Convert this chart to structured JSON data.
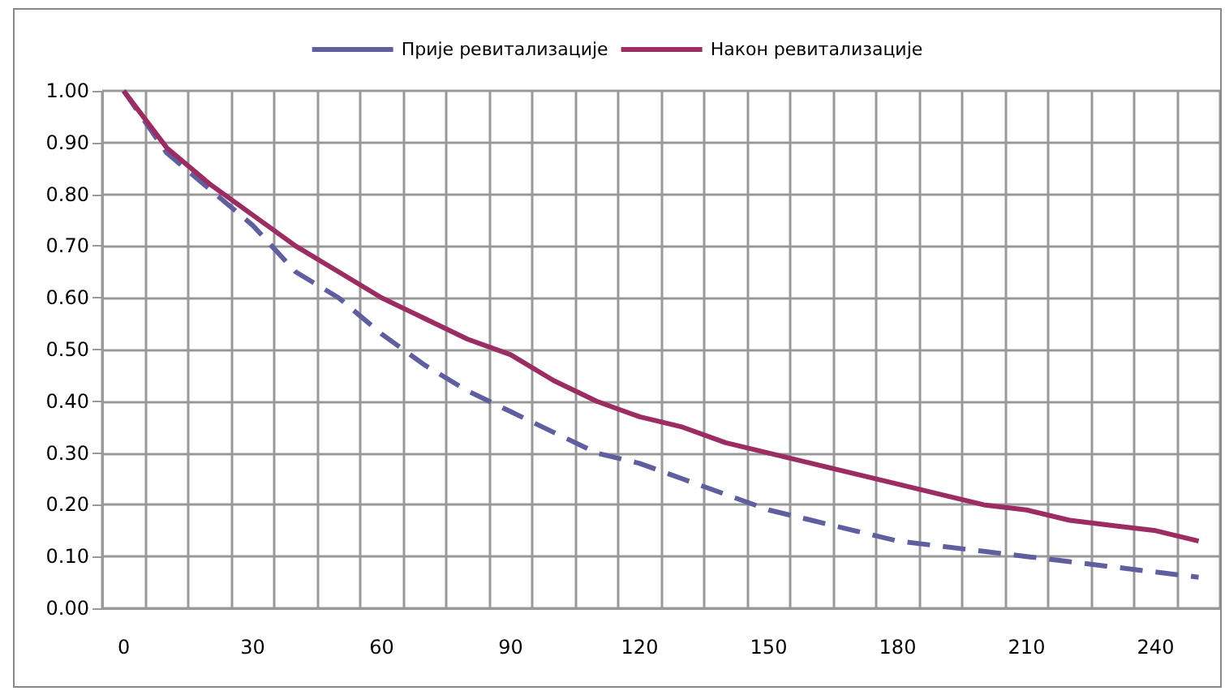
{
  "chart_data": {
    "type": "line",
    "categories": [
      "0",
      null,
      null,
      "30",
      null,
      null,
      "60",
      null,
      null,
      "90",
      null,
      null,
      "120",
      null,
      null,
      "150",
      null,
      null,
      "180",
      null,
      null,
      "210",
      null,
      null,
      "240",
      null
    ],
    "series": [
      {
        "name": "Прије ревитализације",
        "color": "#5f5f9f",
        "line_style": "dashed",
        "values": [
          1.0,
          0.88,
          0.81,
          0.74,
          0.65,
          0.6,
          0.53,
          0.47,
          0.42,
          0.38,
          0.34,
          0.3,
          0.28,
          0.25,
          0.22,
          0.19,
          0.17,
          0.15,
          0.13,
          0.12,
          0.11,
          0.1,
          0.09,
          0.08,
          0.07,
          0.06
        ]
      },
      {
        "name": "Након ревитализације",
        "color": "#9b2d62",
        "line_style": "solid",
        "values": [
          1.0,
          0.89,
          0.82,
          0.76,
          0.7,
          0.65,
          0.6,
          0.56,
          0.52,
          0.49,
          0.44,
          0.4,
          0.37,
          0.35,
          0.32,
          0.3,
          0.28,
          0.26,
          0.24,
          0.22,
          0.2,
          0.19,
          0.17,
          0.16,
          0.15,
          0.13
        ]
      }
    ],
    "ylim": [
      0,
      1
    ],
    "yticks": [
      {
        "value": 0,
        "label": "0.00"
      },
      {
        "value": 0.1,
        "label": "0.10"
      },
      {
        "value": 0.2,
        "label": "0.20"
      },
      {
        "value": 0.3,
        "label": "0.30"
      },
      {
        "value": 0.4,
        "label": "0.40"
      },
      {
        "value": 0.5,
        "label": "0.50"
      },
      {
        "value": 0.6,
        "label": "0.60"
      },
      {
        "value": 0.7,
        "label": "0.70"
      },
      {
        "value": 0.8,
        "label": "0.80"
      },
      {
        "value": 0.9,
        "label": "0.90"
      },
      {
        "value": 1,
        "label": "1.00"
      }
    ],
    "grid": true,
    "legend": "top",
    "marker": "none"
  }
}
